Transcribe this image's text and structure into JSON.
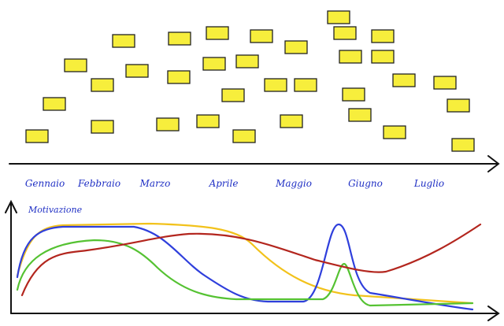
{
  "timeline": {
    "months": [
      "Gennaio",
      "Febbraio",
      "Marzo",
      "Aprile",
      "Maggio",
      "Giugno",
      "Luglio"
    ]
  },
  "chart": {
    "y_label": "Motivazione"
  }
}
